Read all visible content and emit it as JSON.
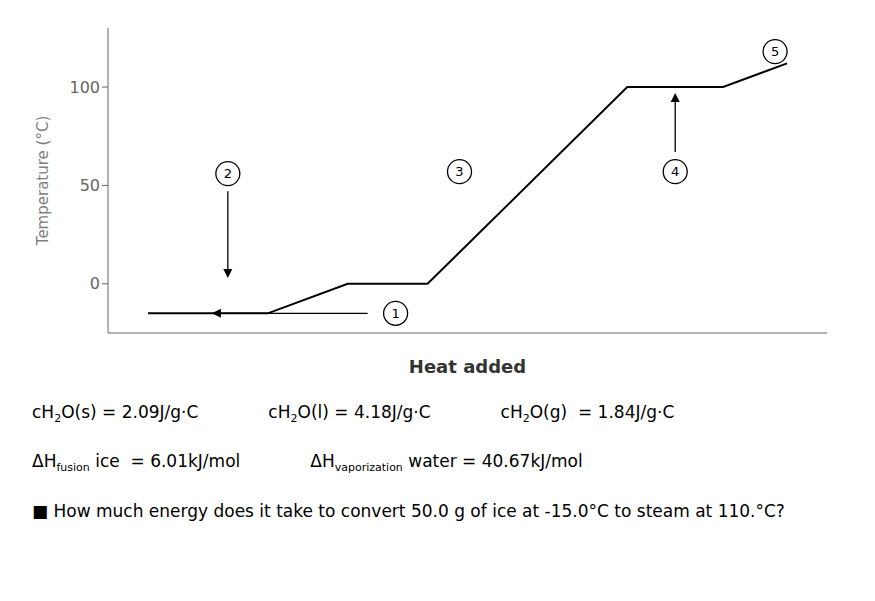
{
  "chart_data": {
    "type": "line",
    "xlabel": "Heat added",
    "ylabel": "Temperature (°C)",
    "x": [
      1,
      2.5,
      3.5,
      4.5,
      7.0,
      8.2,
      9.0
    ],
    "values": [
      -15,
      -15,
      0,
      0,
      100,
      100,
      112
    ],
    "color": "#000000",
    "xlim": [
      0.5,
      9.5
    ],
    "ylim": [
      -25,
      130
    ],
    "yticks": [
      0,
      50,
      100
    ],
    "tick_labels": "y",
    "annotations": [
      {
        "text": "1",
        "x": 4.1,
        "y": -15,
        "arrow": [
          [
            3.75,
            -15
          ],
          [
            1.8,
            -15
          ]
        ]
      },
      {
        "text": "2",
        "x": 2.0,
        "y": 56,
        "arrow": [
          [
            2.0,
            47
          ],
          [
            2.0,
            3
          ]
        ]
      },
      {
        "text": "3",
        "x": 4.9,
        "y": 57
      },
      {
        "text": "4",
        "x": 7.6,
        "y": 57,
        "arrow": [
          [
            7.6,
            67
          ],
          [
            7.6,
            97
          ]
        ]
      },
      {
        "text": "5",
        "x": 8.85,
        "y": 118
      }
    ],
    "notes": [
      [
        [
          {
            "text": "cH"
          },
          {
            "text": "2",
            "sub": true
          },
          {
            "text": "O(s) = 2.09J/g·C"
          }
        ],
        [
          {
            "text": "cH"
          },
          {
            "text": "2",
            "sub": true
          },
          {
            "text": "O(l) = 4.18J/g·C"
          }
        ],
        [
          {
            "text": "cH"
          },
          {
            "text": "2",
            "sub": true
          },
          {
            "text": "O(g)  = 1.84J/g·C"
          }
        ]
      ],
      [
        [
          {
            "text": "ΔH"
          },
          {
            "text": "fusion",
            "sub": true
          },
          {
            "text": " ice  = 6.01kJ/mol"
          }
        ],
        [
          {
            "text": "ΔH"
          },
          {
            "text": "vaporization",
            "sub": true
          },
          {
            "text": " water = 40.67kJ/mol"
          }
        ]
      ],
      [
        [
          {
            "text": "■ How much energy does it take to convert 50.0 g of ice at -15.0°C to steam at 110.°C?"
          }
        ]
      ]
    ]
  }
}
